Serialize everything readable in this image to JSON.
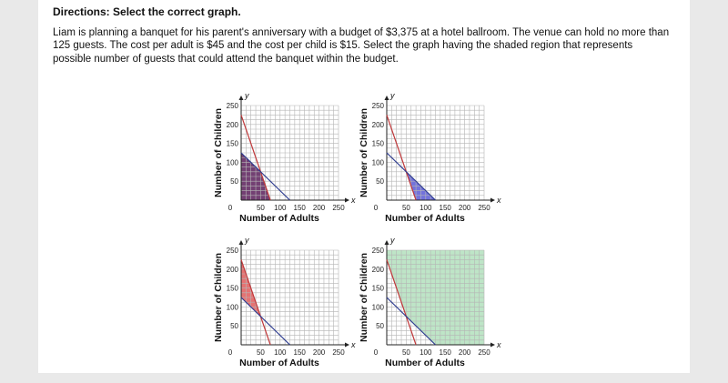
{
  "directions": "Directions: Select the correct graph.",
  "problem": "Liam is planning a banquet for his parent's anniversary with a budget of $3,375 at a hotel ballroom. The venue can hold no more than 125 guests. The cost per adult is $45 and the cost per child is $15. Select the graph having the shaded region that represents possible number of guests that could attend the banquet within the budget.",
  "colors": {
    "budget_line": "#c0393b",
    "guest_line": "#2b3a8f",
    "grid": "#b5b5b5"
  },
  "graphs": [
    {
      "id": "graph-1",
      "shade_color": "#5a1f5a",
      "shade_opacity": 0.85,
      "region": "below-both",
      "chart_data": {
        "type": "line",
        "xlabel": "Number of Adults",
        "ylabel": "Number of Children",
        "x_axis_letter": "x",
        "y_axis_letter": "y",
        "x_ticks": [
          "50",
          "100",
          "150",
          "200",
          "250"
        ],
        "y_ticks": [
          "50",
          "100",
          "150",
          "200",
          "250"
        ],
        "origin_label": "0",
        "xlim": [
          0,
          250
        ],
        "ylim": [
          0,
          250
        ],
        "grid": true,
        "series": [
          {
            "x": [
              0,
              75
            ],
            "y": [
              225,
              0
            ]
          },
          {
            "x": [
              0,
              125
            ],
            "y": [
              125,
              0
            ]
          }
        ]
      }
    },
    {
      "id": "graph-2",
      "shade_color": "#5b5bd6",
      "shade_opacity": 0.85,
      "region": "between-right",
      "chart_data": {
        "type": "line",
        "xlabel": "Number of Adults",
        "ylabel": "Number of Children",
        "x_axis_letter": "x",
        "y_axis_letter": "y",
        "x_ticks": [
          "50",
          "100",
          "150",
          "200",
          "250"
        ],
        "y_ticks": [
          "50",
          "100",
          "150",
          "200",
          "250"
        ],
        "origin_label": "0",
        "xlim": [
          0,
          250
        ],
        "ylim": [
          0,
          250
        ],
        "grid": true,
        "series": [
          {
            "x": [
              0,
              75
            ],
            "y": [
              225,
              0
            ]
          },
          {
            "x": [
              0,
              125
            ],
            "y": [
              125,
              0
            ]
          }
        ]
      }
    },
    {
      "id": "graph-3",
      "shade_color": "#e05a5a",
      "shade_opacity": 0.85,
      "region": "between-left",
      "chart_data": {
        "type": "line",
        "xlabel": "Number of Adults",
        "ylabel": "Number of Children",
        "x_axis_letter": "x",
        "y_axis_letter": "y",
        "x_ticks": [
          "50",
          "100",
          "150",
          "200",
          "250"
        ],
        "y_ticks": [
          "50",
          "100",
          "150",
          "200",
          "250"
        ],
        "origin_label": "0",
        "xlim": [
          0,
          250
        ],
        "ylim": [
          0,
          250
        ],
        "grid": true,
        "series": [
          {
            "x": [
              0,
              75
            ],
            "y": [
              225,
              0
            ]
          },
          {
            "x": [
              0,
              125
            ],
            "y": [
              125,
              0
            ]
          }
        ]
      }
    },
    {
      "id": "graph-4",
      "shade_color": "#a8dcb4",
      "shade_opacity": 0.75,
      "region": "above-both",
      "chart_data": {
        "type": "line",
        "xlabel": "Number of Adults",
        "ylabel": "Number of Children",
        "x_axis_letter": "x",
        "y_axis_letter": "y",
        "x_ticks": [
          "50",
          "100",
          "150",
          "200",
          "250"
        ],
        "y_ticks": [
          "50",
          "100",
          "150",
          "200",
          "250"
        ],
        "origin_label": "0",
        "xlim": [
          0,
          250
        ],
        "ylim": [
          0,
          250
        ],
        "grid": true,
        "series": [
          {
            "x": [
              0,
              75
            ],
            "y": [
              225,
              0
            ]
          },
          {
            "x": [
              0,
              125
            ],
            "y": [
              125,
              0
            ]
          }
        ]
      }
    }
  ]
}
